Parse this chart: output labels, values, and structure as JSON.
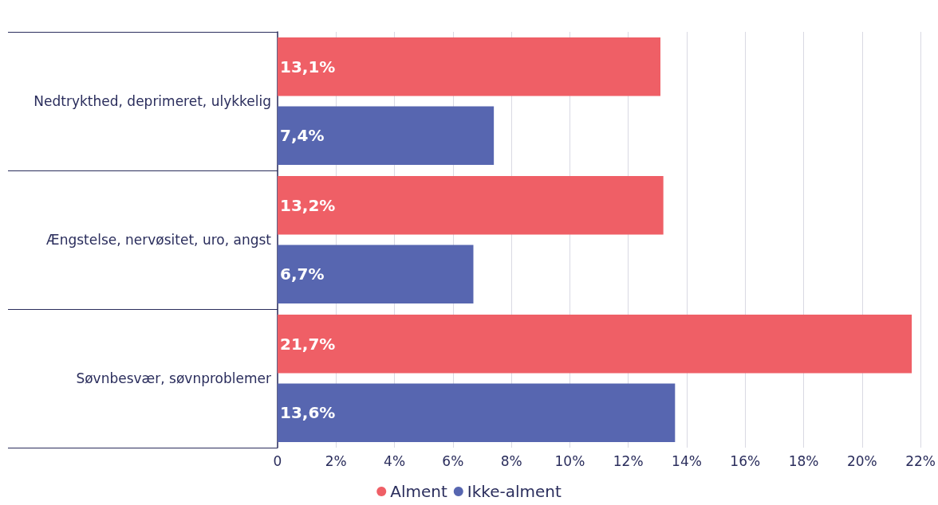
{
  "chart_data": {
    "type": "bar",
    "orientation": "horizontal",
    "categories": [
      "Nedtrykthed, deprimeret, ulykkelig",
      "Ængstelse, nervøsitet, uro, angst",
      "Søvnbesvær, søvnproblemer"
    ],
    "series": [
      {
        "name": "Alment",
        "color": "#ef5f66",
        "values": [
          13.1,
          13.2,
          21.7
        ],
        "value_labels": [
          "13,1%",
          "13,2%",
          "21,7%"
        ]
      },
      {
        "name": "Ikke-alment",
        "color": "#5766b0",
        "values": [
          7.4,
          6.7,
          13.6
        ],
        "value_labels": [
          "7,4%",
          "6,7%",
          "13,6%"
        ]
      }
    ],
    "xlim": [
      0,
      22
    ],
    "xticks": [
      0,
      {
        "value": 2,
        "label": "2%"
      },
      {
        "value": 4,
        "label": "4%"
      },
      {
        "value": 6,
        "label": "6%"
      },
      {
        "value": 8,
        "label": "8%"
      },
      {
        "value": 10,
        "label": "10%"
      },
      {
        "value": 12,
        "label": "12%"
      },
      {
        "value": 14,
        "label": "14%"
      },
      {
        "value": 16,
        "label": "16%"
      },
      {
        "value": 18,
        "label": "18%"
      },
      {
        "value": 20,
        "label": "20%"
      },
      {
        "value": 22,
        "label": "22%"
      }
    ],
    "grid": "x",
    "legend": "bottom"
  }
}
